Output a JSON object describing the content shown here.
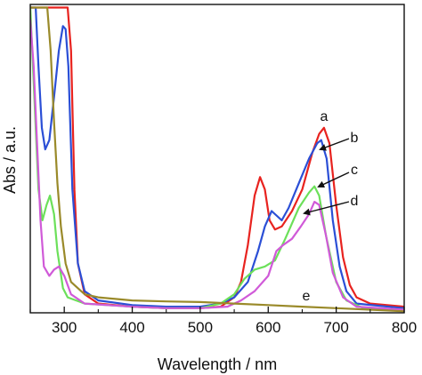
{
  "chart_data": {
    "type": "line",
    "xlabel": "Wavelength / nm",
    "ylabel": "Abs / a.u.",
    "xlim": [
      250,
      800
    ],
    "ylim": [
      0,
      1
    ],
    "x_ticks": [
      300,
      400,
      500,
      600,
      700,
      800
    ],
    "x_tick_labels": [
      "300",
      "400",
      "500",
      "600",
      "700",
      "800"
    ],
    "y_ticks_labeled": false,
    "grid": false,
    "series": [
      {
        "name": "a",
        "color": "#e8231f",
        "points": [
          [
            250,
            0.99
          ],
          [
            300,
            0.99
          ],
          [
            305,
            0.99
          ],
          [
            310,
            0.85
          ],
          [
            315,
            0.4
          ],
          [
            320,
            0.16
          ],
          [
            330,
            0.06
          ],
          [
            350,
            0.03
          ],
          [
            400,
            0.02
          ],
          [
            450,
            0.015
          ],
          [
            500,
            0.015
          ],
          [
            530,
            0.02
          ],
          [
            550,
            0.05
          ],
          [
            560,
            0.1
          ],
          [
            570,
            0.22
          ],
          [
            580,
            0.38
          ],
          [
            588,
            0.44
          ],
          [
            595,
            0.4
          ],
          [
            602,
            0.3
          ],
          [
            610,
            0.27
          ],
          [
            620,
            0.28
          ],
          [
            635,
            0.33
          ],
          [
            650,
            0.4
          ],
          [
            665,
            0.52
          ],
          [
            675,
            0.58
          ],
          [
            682,
            0.6
          ],
          [
            690,
            0.55
          ],
          [
            700,
            0.35
          ],
          [
            710,
            0.18
          ],
          [
            720,
            0.09
          ],
          [
            730,
            0.05
          ],
          [
            750,
            0.03
          ],
          [
            800,
            0.02
          ]
        ]
      },
      {
        "name": "b",
        "color": "#2b4fd6",
        "points": [
          [
            250,
            0.99
          ],
          [
            258,
            0.99
          ],
          [
            262,
            0.8
          ],
          [
            267,
            0.6
          ],
          [
            272,
            0.53
          ],
          [
            278,
            0.56
          ],
          [
            285,
            0.7
          ],
          [
            292,
            0.85
          ],
          [
            298,
            0.93
          ],
          [
            302,
            0.92
          ],
          [
            306,
            0.8
          ],
          [
            312,
            0.4
          ],
          [
            320,
            0.16
          ],
          [
            330,
            0.07
          ],
          [
            350,
            0.04
          ],
          [
            400,
            0.025
          ],
          [
            450,
            0.02
          ],
          [
            500,
            0.02
          ],
          [
            530,
            0.03
          ],
          [
            550,
            0.05
          ],
          [
            570,
            0.1
          ],
          [
            585,
            0.2
          ],
          [
            595,
            0.28
          ],
          [
            605,
            0.33
          ],
          [
            610,
            0.32
          ],
          [
            620,
            0.3
          ],
          [
            630,
            0.34
          ],
          [
            645,
            0.42
          ],
          [
            660,
            0.5
          ],
          [
            672,
            0.55
          ],
          [
            678,
            0.56
          ],
          [
            686,
            0.5
          ],
          [
            695,
            0.3
          ],
          [
            705,
            0.15
          ],
          [
            715,
            0.07
          ],
          [
            730,
            0.03
          ],
          [
            800,
            0.015
          ]
        ]
      },
      {
        "name": "c",
        "color": "#6ce05a",
        "points": [
          [
            250,
            0.99
          ],
          [
            255,
            0.75
          ],
          [
            262,
            0.4
          ],
          [
            268,
            0.3
          ],
          [
            274,
            0.35
          ],
          [
            279,
            0.38
          ],
          [
            285,
            0.32
          ],
          [
            290,
            0.2
          ],
          [
            298,
            0.08
          ],
          [
            305,
            0.05
          ],
          [
            330,
            0.03
          ],
          [
            400,
            0.02
          ],
          [
            450,
            0.015
          ],
          [
            500,
            0.015
          ],
          [
            530,
            0.03
          ],
          [
            550,
            0.06
          ],
          [
            565,
            0.11
          ],
          [
            580,
            0.14
          ],
          [
            595,
            0.15
          ],
          [
            610,
            0.17
          ],
          [
            625,
            0.24
          ],
          [
            645,
            0.34
          ],
          [
            660,
            0.39
          ],
          [
            668,
            0.41
          ],
          [
            675,
            0.38
          ],
          [
            685,
            0.25
          ],
          [
            700,
            0.1
          ],
          [
            715,
            0.04
          ],
          [
            740,
            0.015
          ],
          [
            800,
            0.01
          ]
        ]
      },
      {
        "name": "d",
        "color": "#d05ad8",
        "points": [
          [
            250,
            0.95
          ],
          [
            255,
            0.8
          ],
          [
            260,
            0.55
          ],
          [
            265,
            0.3
          ],
          [
            270,
            0.15
          ],
          [
            278,
            0.12
          ],
          [
            285,
            0.14
          ],
          [
            292,
            0.15
          ],
          [
            300,
            0.12
          ],
          [
            310,
            0.06
          ],
          [
            330,
            0.03
          ],
          [
            400,
            0.02
          ],
          [
            450,
            0.015
          ],
          [
            500,
            0.015
          ],
          [
            540,
            0.02
          ],
          [
            560,
            0.04
          ],
          [
            580,
            0.07
          ],
          [
            600,
            0.12
          ],
          [
            612,
            0.2
          ],
          [
            622,
            0.22
          ],
          [
            635,
            0.24
          ],
          [
            648,
            0.28
          ],
          [
            660,
            0.32
          ],
          [
            668,
            0.36
          ],
          [
            675,
            0.35
          ],
          [
            685,
            0.25
          ],
          [
            695,
            0.13
          ],
          [
            710,
            0.05
          ],
          [
            730,
            0.02
          ],
          [
            800,
            0.01
          ]
        ]
      },
      {
        "name": "e",
        "color": "#9a8a2a",
        "points": [
          [
            250,
            0.99
          ],
          [
            270,
            0.99
          ],
          [
            275,
            0.99
          ],
          [
            280,
            0.85
          ],
          [
            285,
            0.62
          ],
          [
            290,
            0.42
          ],
          [
            295,
            0.28
          ],
          [
            302,
            0.16
          ],
          [
            310,
            0.1
          ],
          [
            330,
            0.06
          ],
          [
            350,
            0.05
          ],
          [
            400,
            0.04
          ],
          [
            450,
            0.037
          ],
          [
            500,
            0.035
          ],
          [
            550,
            0.03
          ],
          [
            600,
            0.025
          ],
          [
            650,
            0.02
          ],
          [
            700,
            0.015
          ],
          [
            750,
            0.01
          ],
          [
            800,
            0.005
          ]
        ]
      }
    ],
    "annotations": [
      {
        "label": "a",
        "series": "a"
      },
      {
        "label": "b",
        "series": "b"
      },
      {
        "label": "c",
        "series": "c"
      },
      {
        "label": "d",
        "series": "d"
      },
      {
        "label": "e",
        "series": "e"
      }
    ]
  }
}
